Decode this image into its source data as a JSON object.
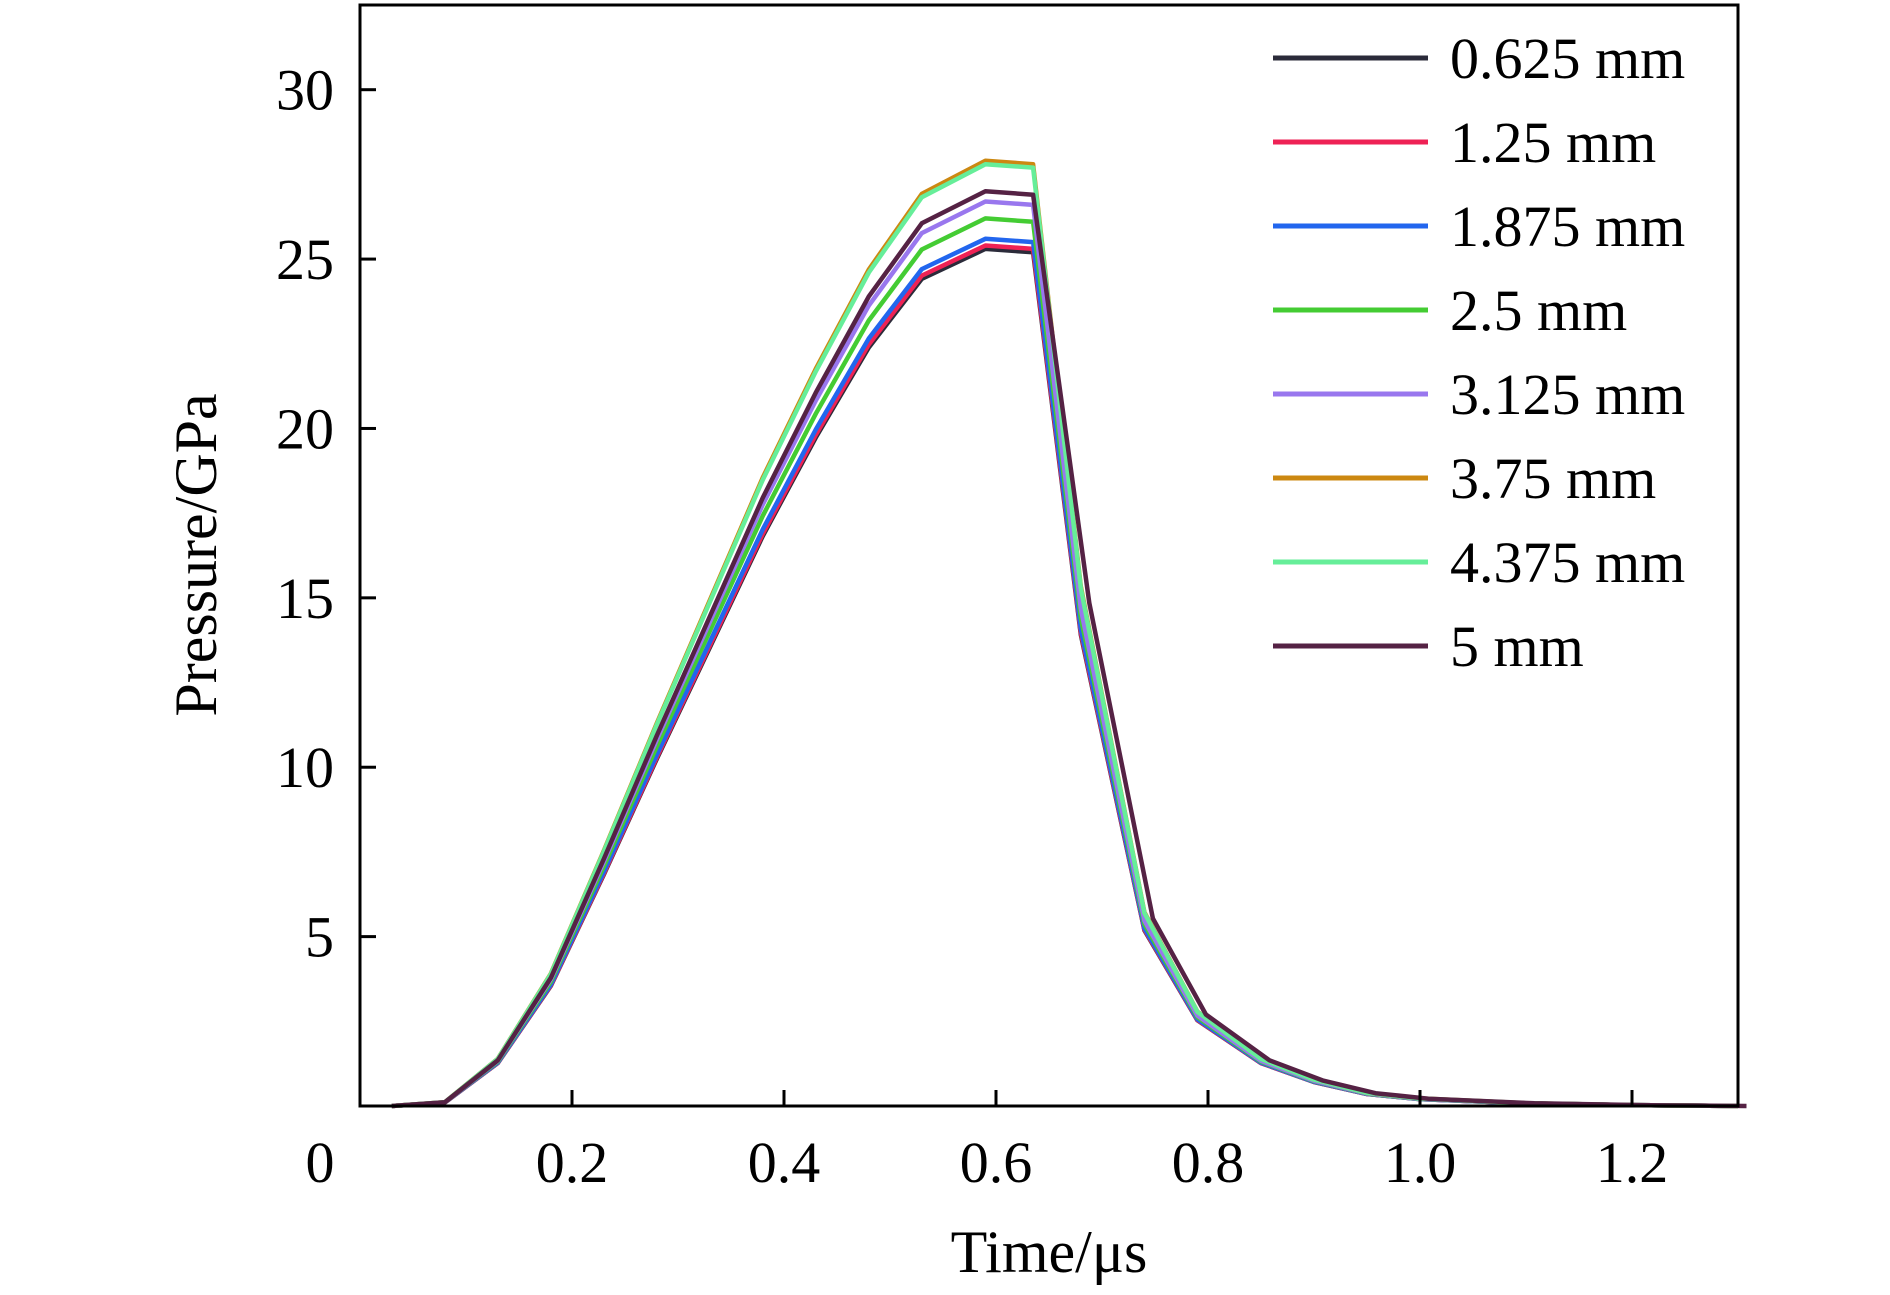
{
  "chart_data": {
    "type": "line",
    "xlabel": "Time/μs",
    "ylabel": "Pressure/GPa",
    "xlim": [
      0,
      1.3
    ],
    "ylim": [
      0,
      32.5
    ],
    "x_ticks": [
      0,
      0.2,
      0.4,
      0.6,
      0.8,
      1.0,
      1.2
    ],
    "x_tick_labels": [
      "0",
      "0.2",
      "0.4",
      "0.6",
      "0.8",
      "1.0",
      "1.2"
    ],
    "y_ticks": [
      5,
      10,
      15,
      20,
      25,
      30
    ],
    "y_tick_labels": [
      "5",
      "10",
      "15",
      "20",
      "25",
      "30"
    ],
    "legend_position": "top-right",
    "grid": false,
    "series": [
      {
        "name": "0.625 mm",
        "color": "#2b2b3a",
        "peak": 25.3,
        "plateau_end": 25.2,
        "tail_offset": 0.0
      },
      {
        "name": "1.25 mm",
        "color": "#ee2255",
        "peak": 25.4,
        "plateau_end": 25.3,
        "tail_offset": 0.0
      },
      {
        "name": "1.875 mm",
        "color": "#2266ee",
        "peak": 25.6,
        "plateau_end": 25.5,
        "tail_offset": 0.0
      },
      {
        "name": "2.5 mm",
        "color": "#44cc33",
        "peak": 26.2,
        "plateau_end": 26.1,
        "tail_offset": 0.0
      },
      {
        "name": "3.125 mm",
        "color": "#9977ee",
        "peak": 26.7,
        "plateau_end": 26.6,
        "tail_offset": 0.0
      },
      {
        "name": "3.75 mm",
        "color": "#cc8811",
        "peak": 27.9,
        "plateau_end": 27.8,
        "tail_offset": 0.0
      },
      {
        "name": "4.375 mm",
        "color": "#66ee99",
        "peak": 27.8,
        "plateau_end": 27.7,
        "tail_offset": 0.0
      },
      {
        "name": "5 mm",
        "color": "#552244",
        "peak": 27.0,
        "plateau_end": 26.9,
        "tail_offset": 0.008
      }
    ],
    "base_curve": {
      "x": [
        0.03,
        0.08,
        0.13,
        0.18,
        0.23,
        0.28,
        0.33,
        0.38,
        0.43,
        0.48,
        0.53,
        0.59,
        0.635,
        0.68,
        0.74,
        0.79,
        0.85,
        0.9,
        0.95,
        1.0,
        1.1,
        1.2,
        1.3
      ],
      "y_fraction_of_peak": [
        0.0,
        0.004,
        0.05,
        0.14,
        0.27,
        0.405,
        0.535,
        0.665,
        0.78,
        0.885,
        0.965,
        1.0,
        0.996,
        0.55,
        0.205,
        0.1,
        0.05,
        0.028,
        0.014,
        0.008,
        0.003,
        0.001,
        0.0
      ]
    }
  }
}
